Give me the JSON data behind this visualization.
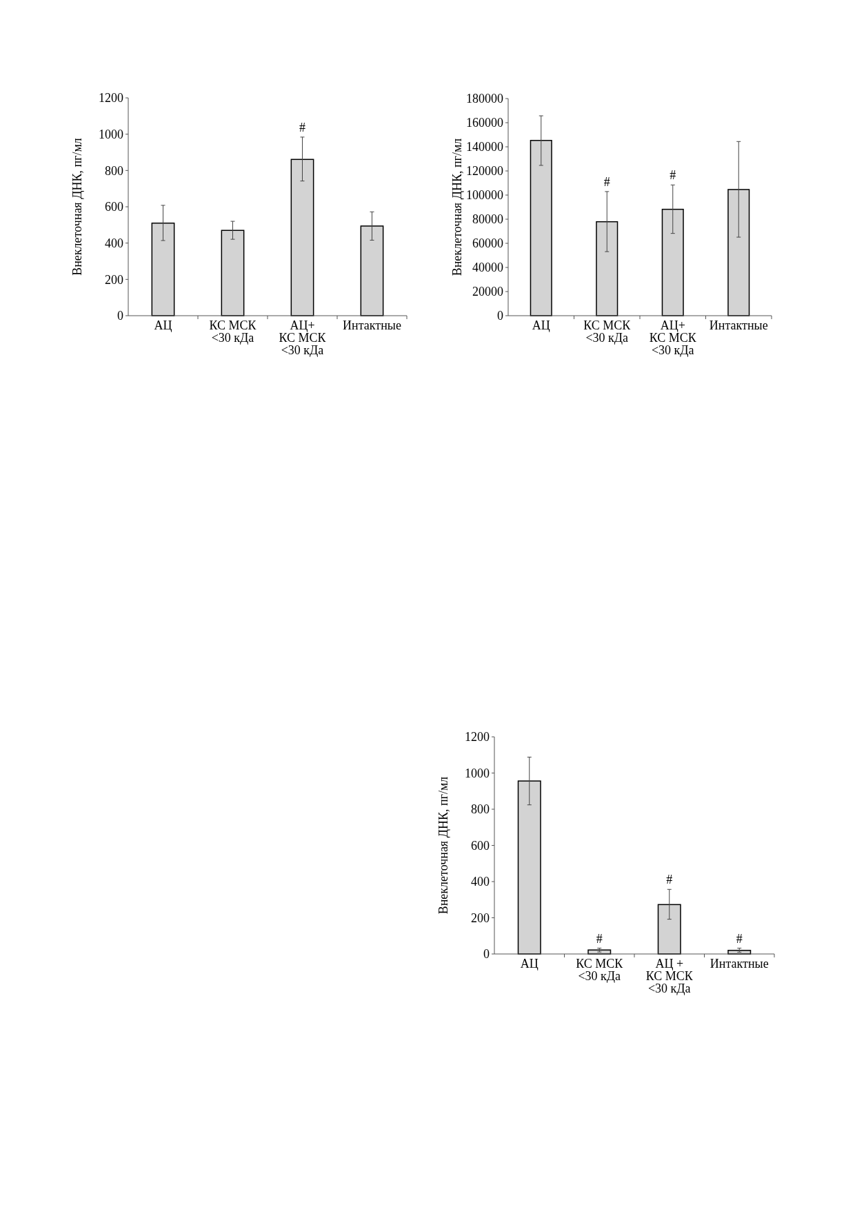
{
  "chart_data": [
    {
      "type": "bar",
      "ylabel": "Внеклеточная ДНК, пг/мл",
      "categories": [
        "АЦ",
        "КС МСК\n<30 кДа",
        "АЦ+\nКС МСК\n<30 кДа",
        "Интактные"
      ],
      "values": [
        510,
        470,
        861,
        494
      ],
      "errors": [
        [
          414,
          608
        ],
        [
          421,
          520
        ],
        [
          742,
          984
        ],
        [
          416,
          572
        ]
      ],
      "color": "#d3d3d3",
      "ylim": [
        0,
        1200
      ],
      "yticks": [
        0,
        200,
        400,
        600,
        800,
        1000,
        1200
      ],
      "grid": false,
      "annotations": [
        {
          "text": "#",
          "x": "АЦ+\nКС МСК\n<30 кДа",
          "y": 984
        }
      ]
    },
    {
      "type": "bar",
      "ylabel": "Внеклеточная ДНК, пг/мл",
      "categories": [
        "АЦ",
        "КС МСК\n<30 кДа",
        "АЦ+\nКС МСК\n<30 кДа",
        "Интактные"
      ],
      "values": [
        145300,
        77900,
        88200,
        104600
      ],
      "errors": [
        [
          124600,
          165700
        ],
        [
          53100,
          102900
        ],
        [
          68200,
          108400
        ],
        [
          65100,
          144400
        ]
      ],
      "color": "#d3d3d3",
      "ylim": [
        0,
        180000
      ],
      "yticks": [
        0,
        20000,
        40000,
        60000,
        80000,
        100000,
        120000,
        140000,
        160000,
        180000
      ],
      "grid": false,
      "annotations": [
        {
          "text": "#",
          "x": "КС МСК\n<30 кДа",
          "y": 102900
        },
        {
          "text": "#",
          "x": "АЦ+\nКС МСК\n<30 кДа",
          "y": 108400
        }
      ]
    },
    {
      "type": "bar",
      "ylabel": "Внеклеточная ДНК, пг/мл",
      "categories": [
        "АЦ",
        "КС МСК\n<30 кДа",
        "АЦ +\nКС МСК\n<30 кДа",
        "Интактные"
      ],
      "values": [
        956,
        22,
        273,
        20
      ],
      "errors": [
        [
          824,
          1088
        ],
        [
          11,
          32
        ],
        [
          192,
          357
        ],
        [
          10,
          32
        ]
      ],
      "color": "#d3d3d3",
      "ylim": [
        0,
        1200
      ],
      "yticks": [
        0,
        200,
        400,
        600,
        800,
        1000,
        1200
      ],
      "grid": false,
      "annotations": [
        {
          "text": "#",
          "x": "КС МСК\n<30 кДа",
          "y": 32
        },
        {
          "text": "#",
          "x": "АЦ +\nКС МСК\n<30 кДа",
          "y": 357
        },
        {
          "text": "#",
          "x": "Интактные",
          "y": 32
        }
      ]
    }
  ]
}
